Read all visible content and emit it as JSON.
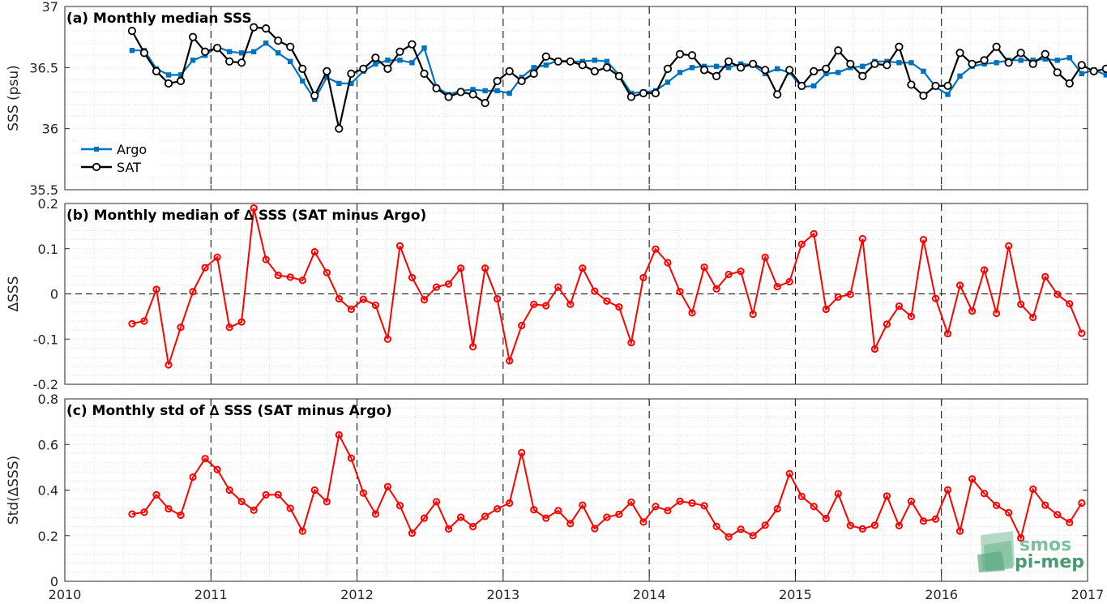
{
  "chart_data": [
    {
      "type": "line",
      "title": "(a) Monthly median SSS",
      "ylabel": "SSS (psu)",
      "xlabel": "",
      "xlim": [
        2010,
        2017
      ],
      "ylim": [
        35.5,
        37
      ],
      "x_ticks": [
        "2010",
        "2011",
        "2012",
        "2013",
        "2014",
        "2015",
        "2016",
        "2017"
      ],
      "y_ticks": [
        "35.5",
        "36",
        "36.5",
        "37"
      ],
      "grid": "minor dotted, dashed vertical lines at each year",
      "legend_position": "bottom-left",
      "series": [
        {
          "name": "Argo",
          "color": "#0072BD",
          "marker": "square",
          "values": [
            36.64,
            36.64,
            36.49,
            36.44,
            36.44,
            36.56,
            36.6,
            36.67,
            36.63,
            36.62,
            36.63,
            36.7,
            36.62,
            36.55,
            36.39,
            36.24,
            36.42,
            36.37,
            36.37,
            36.47,
            36.53,
            36.56,
            36.56,
            36.54,
            36.66,
            36.34,
            36.28,
            36.31,
            36.32,
            36.31,
            36.31,
            36.29,
            36.42,
            36.5,
            36.52,
            36.56,
            36.55,
            36.55,
            36.56,
            36.55,
            36.44,
            36.29,
            36.3,
            36.31,
            36.38,
            36.46,
            36.5,
            36.51,
            36.51,
            36.5,
            36.53,
            36.52,
            36.45,
            36.49,
            36.46,
            36.34,
            36.35,
            36.45,
            36.46,
            36.5,
            36.51,
            36.55,
            36.55,
            36.54,
            36.54,
            36.47,
            36.34,
            36.28,
            36.43,
            36.51,
            36.53,
            36.54,
            36.56,
            36.56,
            36.56,
            36.57,
            36.56,
            36.58,
            36.45,
            36.48,
            36.44,
            36.51,
            36.57,
            36.62
          ]
        },
        {
          "name": "SAT",
          "color": "#000000",
          "marker": "circle",
          "values": [
            36.8,
            36.62,
            36.47,
            36.37,
            36.39,
            36.75,
            36.63,
            36.66,
            36.55,
            36.54,
            36.83,
            36.82,
            36.72,
            36.67,
            36.49,
            36.27,
            36.47,
            36.0,
            36.45,
            36.49,
            36.58,
            36.49,
            36.63,
            36.69,
            36.45,
            36.33,
            36.26,
            36.3,
            36.28,
            36.21,
            36.39,
            36.47,
            36.39,
            36.45,
            36.59,
            36.55,
            36.55,
            36.52,
            36.47,
            36.5,
            36.43,
            36.26,
            36.29,
            36.29,
            36.49,
            36.61,
            36.6,
            36.48,
            36.43,
            36.55,
            36.5,
            36.53,
            36.48,
            36.28,
            36.48,
            36.35,
            36.47,
            36.49,
            36.64,
            36.53,
            36.43,
            36.53,
            36.52,
            36.67,
            36.36,
            36.27,
            36.35,
            36.35,
            36.62,
            36.53,
            36.56,
            36.67,
            36.54,
            36.62,
            36.53,
            36.61,
            36.46,
            36.37,
            36.52,
            36.47,
            36.49,
            36.57
          ]
        }
      ],
      "x_first": 2010.46,
      "x_step_months": 1
    },
    {
      "type": "line",
      "title": "(b) Monthly median of ∆ SSS (SAT minus Argo)",
      "ylabel": "∆SSS",
      "xlabel": "",
      "xlim": [
        2010,
        2017
      ],
      "ylim": [
        -0.2,
        0.2
      ],
      "x_ticks": [
        "2010",
        "2011",
        "2012",
        "2013",
        "2014",
        "2015",
        "2016",
        "2017"
      ],
      "y_ticks": [
        "-0.2",
        "-0.1",
        "0",
        "0.1",
        "0.2"
      ],
      "zero_line": true,
      "series": [
        {
          "color": "#FF0000",
          "marker": "circle",
          "values": [
            -0.066,
            -0.06,
            0.01,
            -0.157,
            -0.074,
            0.005,
            0.058,
            0.081,
            -0.074,
            -0.062,
            0.19,
            0.076,
            0.041,
            0.037,
            0.03,
            0.093,
            0.047,
            -0.011,
            -0.034,
            -0.012,
            -0.025,
            -0.1,
            0.106,
            0.036,
            -0.013,
            0.015,
            0.022,
            0.057,
            -0.117,
            0.057,
            -0.011,
            -0.148,
            -0.07,
            -0.023,
            -0.026,
            0.015,
            -0.023,
            0.057,
            0.006,
            -0.016,
            -0.029,
            -0.108,
            0.036,
            0.099,
            0.069,
            0.005,
            -0.042,
            0.059,
            0.011,
            0.043,
            0.05,
            -0.045,
            0.081,
            0.016,
            0.027,
            0.11,
            0.133,
            -0.034,
            -0.007,
            -0.001,
            0.122,
            -0.122,
            -0.067,
            -0.027,
            -0.05,
            0.12,
            -0.01,
            -0.088,
            0.019,
            -0.038,
            0.053,
            -0.043,
            0.106,
            -0.023,
            -0.052,
            0.038,
            -0.001,
            -0.022,
            -0.087
          ]
        }
      ],
      "x_first": 2010.46,
      "x_step_months": 1
    },
    {
      "type": "line",
      "title": "(c) Monthly std of ∆ SSS (SAT minus Argo)",
      "ylabel": "Std(∆SSS)",
      "xlabel": "",
      "xlim": [
        2010,
        2017
      ],
      "ylim": [
        0,
        0.8
      ],
      "x_ticks": [
        "2010",
        "2011",
        "2012",
        "2013",
        "2014",
        "2015",
        "2016",
        "2017"
      ],
      "y_ticks": [
        "0",
        "0.2",
        "0.4",
        "0.6",
        "0.8"
      ],
      "series": [
        {
          "color": "#FF0000",
          "marker": "circle",
          "values": [
            0.295,
            0.303,
            0.379,
            0.318,
            0.29,
            0.457,
            0.538,
            0.49,
            0.4,
            0.35,
            0.312,
            0.379,
            0.38,
            0.32,
            0.22,
            0.4,
            0.349,
            0.642,
            0.54,
            0.387,
            0.295,
            0.415,
            0.332,
            0.211,
            0.277,
            0.349,
            0.23,
            0.281,
            0.24,
            0.285,
            0.318,
            0.343,
            0.564,
            0.314,
            0.277,
            0.31,
            0.253,
            0.334,
            0.231,
            0.281,
            0.294,
            0.347,
            0.26,
            0.328,
            0.31,
            0.351,
            0.343,
            0.331,
            0.241,
            0.195,
            0.228,
            0.2,
            0.246,
            0.318,
            0.472,
            0.372,
            0.328,
            0.275,
            0.384,
            0.245,
            0.23,
            0.246,
            0.374,
            0.244,
            0.351,
            0.264,
            0.273,
            0.401,
            0.22,
            0.449,
            0.385,
            0.333,
            0.301,
            0.19,
            0.404,
            0.334,
            0.292,
            0.258,
            0.343
          ]
        }
      ],
      "x_first": 2010.46,
      "x_step_months": 1
    }
  ],
  "logo": {
    "line1": "smos",
    "line2": "pi-mep",
    "color": "#4b9a73"
  }
}
